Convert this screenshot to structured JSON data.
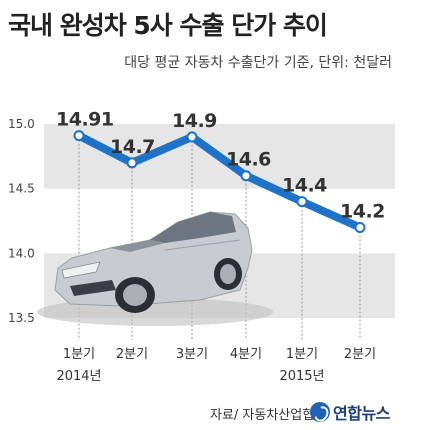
{
  "header": {
    "title": "국내 완성차 5사 수출 단가 추이",
    "subtitle": "대당 평균 자동차 수출단가 기준, 단위: 천달러"
  },
  "footer": {
    "source": "자료/ 자동차산업협회",
    "logo_text": "연합뉴스"
  },
  "colors": {
    "line": "#1e73c8",
    "band": "#e6e6e6",
    "car_body": "#c8ccd1"
  },
  "chart_data": {
    "type": "line",
    "categories": [
      "1분기",
      "2분기",
      "3분기",
      "4분기",
      "1분기",
      "2분기"
    ],
    "year_labels": [
      "2014년",
      "",
      "",
      "",
      "2015년",
      ""
    ],
    "values": [
      14.91,
      14.7,
      14.9,
      14.6,
      14.4,
      14.2
    ],
    "data_labels": [
      "14.91",
      "14.7",
      "14.9",
      "14.6",
      "14.4",
      "14.2"
    ],
    "yticks": [
      "15.0",
      "14.5",
      "14.0",
      "13.5"
    ],
    "ylim": [
      13.5,
      15.0
    ],
    "grid": "alternating horizontal bands"
  },
  "illustration": {
    "name": "silver sedan"
  }
}
